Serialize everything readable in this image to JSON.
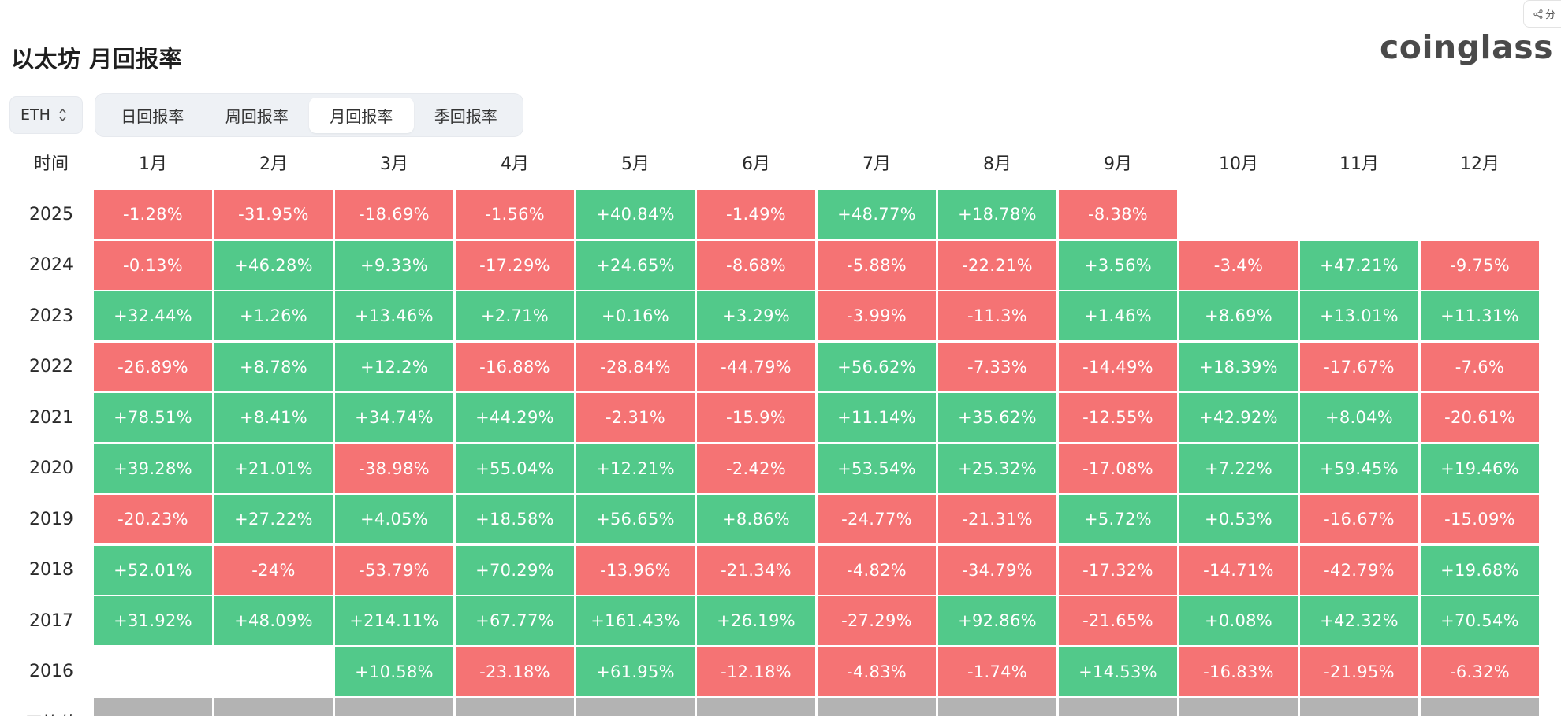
{
  "share_button": {
    "label": "分",
    "icon": "share-icon"
  },
  "page_title": "以太坊 月回报率",
  "logo_text": "coinglass",
  "coin_select": {
    "value": "ETH",
    "icon": "chevron-updown-icon"
  },
  "tabs": [
    {
      "label": "日回报率",
      "active": false
    },
    {
      "label": "周回报率",
      "active": false
    },
    {
      "label": "月回报率",
      "active": true
    },
    {
      "label": "季回报率",
      "active": false
    }
  ],
  "colors": {
    "positive": "#52c98a",
    "negative": "#f57374",
    "average": "#b3b3b3"
  },
  "table": {
    "header": {
      "time": "时间",
      "months": [
        "1月",
        "2月",
        "3月",
        "4月",
        "5月",
        "6月",
        "7月",
        "8月",
        "9月",
        "10月",
        "11月",
        "12月"
      ]
    },
    "rows": [
      {
        "year": "2025",
        "values": [
          "-1.28%",
          "-31.95%",
          "-18.69%",
          "-1.56%",
          "+40.84%",
          "-1.49%",
          "+48.77%",
          "+18.78%",
          "-8.38%",
          "",
          "",
          ""
        ]
      },
      {
        "year": "2024",
        "values": [
          "-0.13%",
          "+46.28%",
          "+9.33%",
          "-17.29%",
          "+24.65%",
          "-8.68%",
          "-5.88%",
          "-22.21%",
          "+3.56%",
          "-3.4%",
          "+47.21%",
          "-9.75%"
        ]
      },
      {
        "year": "2023",
        "values": [
          "+32.44%",
          "+1.26%",
          "+13.46%",
          "+2.71%",
          "+0.16%",
          "+3.29%",
          "-3.99%",
          "-11.3%",
          "+1.46%",
          "+8.69%",
          "+13.01%",
          "+11.31%"
        ]
      },
      {
        "year": "2022",
        "values": [
          "-26.89%",
          "+8.78%",
          "+12.2%",
          "-16.88%",
          "-28.84%",
          "-44.79%",
          "+56.62%",
          "-7.33%",
          "-14.49%",
          "+18.39%",
          "-17.67%",
          "-7.6%"
        ]
      },
      {
        "year": "2021",
        "values": [
          "+78.51%",
          "+8.41%",
          "+34.74%",
          "+44.29%",
          "-2.31%",
          "-15.9%",
          "+11.14%",
          "+35.62%",
          "-12.55%",
          "+42.92%",
          "+8.04%",
          "-20.61%"
        ]
      },
      {
        "year": "2020",
        "values": [
          "+39.28%",
          "+21.01%",
          "-38.98%",
          "+55.04%",
          "+12.21%",
          "-2.42%",
          "+53.54%",
          "+25.32%",
          "-17.08%",
          "+7.22%",
          "+59.45%",
          "+19.46%"
        ]
      },
      {
        "year": "2019",
        "values": [
          "-20.23%",
          "+27.22%",
          "+4.05%",
          "+18.58%",
          "+56.65%",
          "+8.86%",
          "-24.77%",
          "-21.31%",
          "+5.72%",
          "+0.53%",
          "-16.67%",
          "-15.09%"
        ]
      },
      {
        "year": "2018",
        "values": [
          "+52.01%",
          "-24%",
          "-53.79%",
          "+70.29%",
          "-13.96%",
          "-21.34%",
          "-4.82%",
          "-34.79%",
          "-17.32%",
          "-14.71%",
          "-42.79%",
          "+19.68%"
        ]
      },
      {
        "year": "2017",
        "values": [
          "+31.92%",
          "+48.09%",
          "+214.11%",
          "+67.77%",
          "+161.43%",
          "+26.19%",
          "-27.29%",
          "+92.86%",
          "-21.65%",
          "+0.08%",
          "+42.32%",
          "+70.54%"
        ]
      },
      {
        "year": "2016",
        "values": [
          "",
          "",
          "+10.58%",
          "-23.18%",
          "+61.95%",
          "-12.18%",
          "-4.83%",
          "-1.74%",
          "+14.53%",
          "-16.83%",
          "-21.95%",
          "-6.32%"
        ]
      }
    ],
    "average_row": {
      "label": "平均值"
    }
  }
}
